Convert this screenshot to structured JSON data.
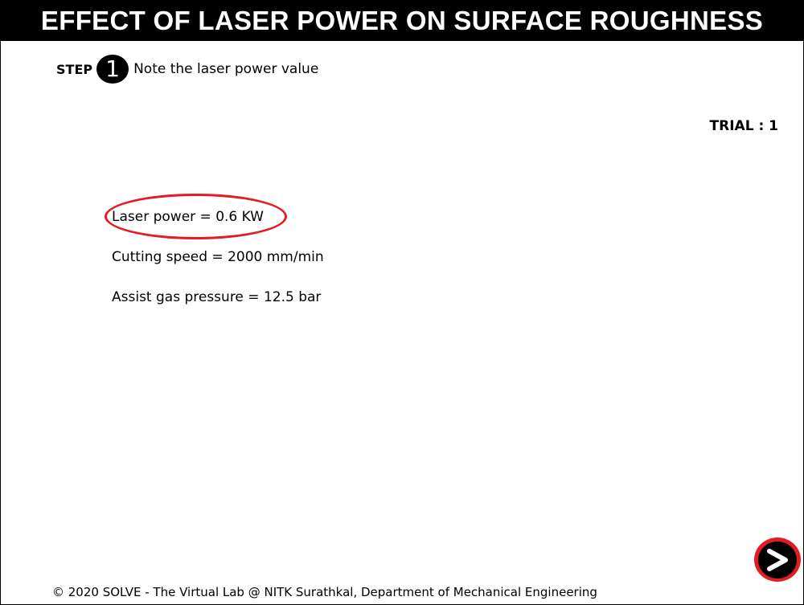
{
  "header": {
    "title": "EFFECT OF LASER POWER ON SURFACE ROUGHNESS"
  },
  "step": {
    "label": "STEP",
    "number": "1",
    "instruction": "Note the laser power value"
  },
  "trial": {
    "text": "TRIAL : 1"
  },
  "parameters": [
    {
      "text": "Laser power = 0.6 KW",
      "highlighted": true
    },
    {
      "text": "Cutting speed = 2000 mm/min",
      "highlighted": false
    },
    {
      "text": "Assist gas pressure = 12.5 bar",
      "highlighted": false
    }
  ],
  "navigation": {
    "next_icon": "chevron-right-icon"
  },
  "footer": {
    "text": "© 2020 SOLVE - The Virtual Lab @ NITK Surathkal, Department of Mechanical Engineering"
  },
  "colors": {
    "title_bar_bg": "#000000",
    "title_text": "#ffffff",
    "highlight": "#e31b23",
    "next_button_ring": "#e31b23",
    "next_button_fill": "#000000"
  }
}
